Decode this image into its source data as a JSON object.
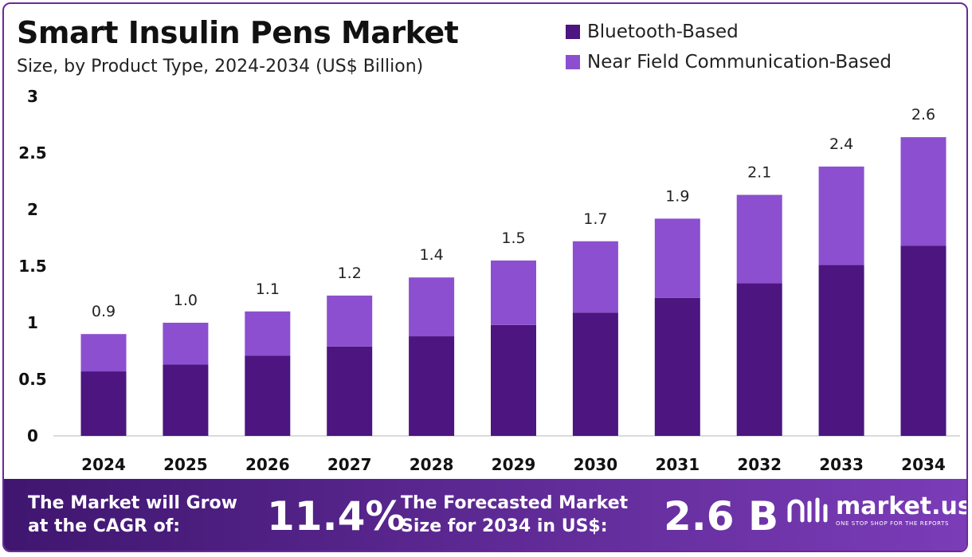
{
  "header": {
    "title": "Smart Insulin Pens Market",
    "subtitle": "Size, by Product Type, 2024-2034 (US$ Billion)"
  },
  "legend": [
    {
      "label": "Bluetooth-Based",
      "color": "#4c1580"
    },
    {
      "label": "Near Field Communication-Based",
      "color": "#8c4fd0"
    }
  ],
  "chart_data": {
    "type": "bar",
    "stacked": true,
    "title": "Smart Insulin Pens Market",
    "subtitle": "Size, by Product Type, 2024-2034 (US$ Billion)",
    "categories": [
      "2024",
      "2025",
      "2026",
      "2027",
      "2028",
      "2029",
      "2030",
      "2031",
      "2032",
      "2033",
      "2034"
    ],
    "series": [
      {
        "name": "Bluetooth-Based",
        "color": "#4c1580",
        "values": [
          0.57,
          0.63,
          0.71,
          0.79,
          0.88,
          0.98,
          1.09,
          1.22,
          1.35,
          1.51,
          1.68
        ]
      },
      {
        "name": "Near Field Communication-Based",
        "color": "#8c4fd0",
        "values": [
          0.33,
          0.37,
          0.39,
          0.45,
          0.52,
          0.57,
          0.63,
          0.7,
          0.78,
          0.87,
          0.96
        ]
      }
    ],
    "totals_labels": [
      "0.9",
      "1.0",
      "1.1",
      "1.2",
      "1.4",
      "1.5",
      "1.7",
      "1.9",
      "2.1",
      "2.4",
      "2.6"
    ],
    "yticks": [
      "0",
      "0.5",
      "1",
      "1.5",
      "2",
      "2.5",
      "3"
    ],
    "ylim": [
      0,
      3
    ],
    "xlabel": "",
    "ylabel": "",
    "grid": false,
    "legend_position": "top-right"
  },
  "footer": {
    "cagr_text_line1": "The Market will Grow",
    "cagr_text_line2": "at the CAGR of:",
    "cagr_value": "11.4%",
    "forecast_text_line1": "The Forecasted Market",
    "forecast_text_line2": "Size for 2034 in US$:",
    "forecast_value": "2.6 B",
    "brand_name": "market.us",
    "brand_tagline": "ONE STOP SHOP FOR THE REPORTS"
  }
}
